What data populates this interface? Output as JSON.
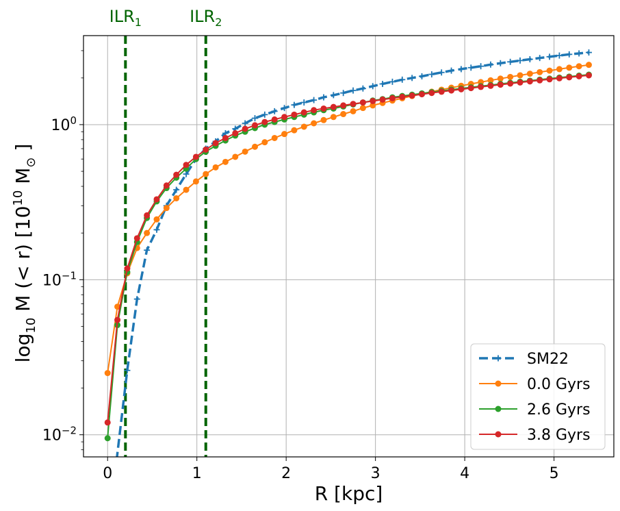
{
  "chart_data": {
    "type": "line",
    "title": "",
    "xlabel": "R [kpc]",
    "ylabel_prefix": "log",
    "ylabel_prefix_sub": "10",
    "ylabel_main": " M (< r) [10",
    "ylabel_exp": "10",
    "ylabel_unit": " M",
    "ylabel_unit_sub": "⊙",
    "ylabel_close": " ]",
    "yscale": "log",
    "xlim": [
      -0.27,
      5.67
    ],
    "ylim": [
      0.0072,
      3.75
    ],
    "x_ticks": [
      0,
      1,
      2,
      3,
      4,
      5
    ],
    "x_tick_labels": [
      "0",
      "1",
      "2",
      "3",
      "4",
      "5"
    ],
    "y_ticks": [
      0.01,
      0.1,
      1
    ],
    "y_tick_labels": [
      {
        "base": "10",
        "exp": "−2"
      },
      {
        "base": "10",
        "exp": "−1"
      },
      {
        "base": "10",
        "exp": "0"
      }
    ],
    "grid": true,
    "legend_position": "lower-right",
    "vlines": [
      {
        "x": 0.2,
        "label": "ILR",
        "sub": "1",
        "color": "#006400"
      },
      {
        "x": 1.1,
        "label": "ILR",
        "sub": "2",
        "color": "#006400"
      }
    ],
    "series": [
      {
        "name": "SM22",
        "color": "#1f77b4",
        "style": "dashed",
        "marker": "plus",
        "x": [
          0.1,
          0.22,
          0.33,
          0.44,
          0.55,
          0.66,
          0.77,
          0.88,
          0.99,
          1.1,
          1.21,
          1.32,
          1.43,
          1.54,
          1.65,
          1.76,
          1.87,
          1.98,
          2.09,
          2.2,
          2.31,
          2.42,
          2.53,
          2.64,
          2.75,
          2.86,
          2.97,
          3.08,
          3.19,
          3.3,
          3.41,
          3.52,
          3.63,
          3.74,
          3.85,
          3.96,
          4.07,
          4.18,
          4.29,
          4.4,
          4.51,
          4.62,
          4.73,
          4.84,
          4.95,
          5.06,
          5.17,
          5.28,
          5.39
        ],
        "values": [
          0.0068,
          0.026,
          0.075,
          0.155,
          0.21,
          0.3,
          0.38,
          0.48,
          0.6,
          0.7,
          0.78,
          0.88,
          0.94,
          1.02,
          1.1,
          1.16,
          1.22,
          1.28,
          1.34,
          1.39,
          1.44,
          1.5,
          1.55,
          1.6,
          1.66,
          1.71,
          1.77,
          1.83,
          1.89,
          1.95,
          2.0,
          2.05,
          2.11,
          2.17,
          2.23,
          2.28,
          2.33,
          2.38,
          2.44,
          2.49,
          2.54,
          2.59,
          2.64,
          2.69,
          2.74,
          2.79,
          2.84,
          2.88,
          2.92
        ]
      },
      {
        "name": "0.0 Gyrs",
        "color": "#ff7f0e",
        "style": "solid",
        "marker": "circle",
        "x": [
          0.0,
          0.11,
          0.22,
          0.33,
          0.44,
          0.55,
          0.66,
          0.77,
          0.88,
          0.99,
          1.1,
          1.21,
          1.32,
          1.43,
          1.54,
          1.65,
          1.76,
          1.87,
          1.98,
          2.09,
          2.2,
          2.31,
          2.42,
          2.53,
          2.64,
          2.75,
          2.86,
          2.97,
          3.08,
          3.19,
          3.3,
          3.41,
          3.52,
          3.63,
          3.74,
          3.85,
          3.96,
          4.07,
          4.18,
          4.29,
          4.4,
          4.51,
          4.62,
          4.73,
          4.84,
          4.95,
          5.06,
          5.17,
          5.28,
          5.39
        ],
        "values": [
          0.025,
          0.067,
          0.11,
          0.16,
          0.2,
          0.245,
          0.29,
          0.335,
          0.38,
          0.43,
          0.48,
          0.53,
          0.575,
          0.62,
          0.67,
          0.72,
          0.77,
          0.82,
          0.87,
          0.92,
          0.97,
          1.02,
          1.07,
          1.12,
          1.17,
          1.22,
          1.28,
          1.33,
          1.38,
          1.43,
          1.48,
          1.53,
          1.58,
          1.63,
          1.68,
          1.73,
          1.78,
          1.83,
          1.88,
          1.93,
          1.98,
          2.03,
          2.08,
          2.13,
          2.18,
          2.23,
          2.28,
          2.33,
          2.38,
          2.43
        ]
      },
      {
        "name": "2.6 Gyrs",
        "color": "#2ca02c",
        "style": "solid",
        "marker": "circle",
        "x": [
          0.0,
          0.11,
          0.22,
          0.33,
          0.44,
          0.55,
          0.66,
          0.77,
          0.88,
          0.99,
          1.1,
          1.21,
          1.32,
          1.43,
          1.54,
          1.65,
          1.76,
          1.87,
          1.98,
          2.09,
          2.2,
          2.31,
          2.42,
          2.53,
          2.64,
          2.75,
          2.86,
          2.97,
          3.08,
          3.19,
          3.3,
          3.41,
          3.52,
          3.63,
          3.74,
          3.85,
          3.96,
          4.07,
          4.18,
          4.29,
          4.4,
          4.51,
          4.62,
          4.73,
          4.84,
          4.95,
          5.06,
          5.17,
          5.28,
          5.39
        ],
        "values": [
          0.0095,
          0.051,
          0.112,
          0.175,
          0.25,
          0.32,
          0.39,
          0.455,
          0.52,
          0.6,
          0.67,
          0.73,
          0.79,
          0.85,
          0.9,
          0.95,
          1.0,
          1.04,
          1.08,
          1.12,
          1.16,
          1.2,
          1.24,
          1.27,
          1.31,
          1.35,
          1.39,
          1.43,
          1.46,
          1.5,
          1.53,
          1.56,
          1.59,
          1.62,
          1.65,
          1.68,
          1.71,
          1.74,
          1.77,
          1.8,
          1.83,
          1.86,
          1.89,
          1.92,
          1.95,
          1.98,
          2.01,
          2.04,
          2.07,
          2.1
        ]
      },
      {
        "name": "3.8 Gyrs",
        "color": "#d62728",
        "style": "solid",
        "marker": "circle",
        "x": [
          0.0,
          0.11,
          0.22,
          0.33,
          0.44,
          0.55,
          0.66,
          0.77,
          0.88,
          0.99,
          1.1,
          1.21,
          1.32,
          1.43,
          1.54,
          1.65,
          1.76,
          1.87,
          1.98,
          2.09,
          2.2,
          2.31,
          2.42,
          2.53,
          2.64,
          2.75,
          2.86,
          2.97,
          3.08,
          3.19,
          3.3,
          3.41,
          3.52,
          3.63,
          3.74,
          3.85,
          3.96,
          4.07,
          4.18,
          4.29,
          4.4,
          4.51,
          4.62,
          4.73,
          4.84,
          4.95,
          5.06,
          5.17,
          5.28,
          5.39
        ],
        "values": [
          0.012,
          0.055,
          0.118,
          0.185,
          0.26,
          0.33,
          0.405,
          0.475,
          0.55,
          0.62,
          0.69,
          0.76,
          0.82,
          0.88,
          0.94,
          0.99,
          1.04,
          1.08,
          1.12,
          1.16,
          1.2,
          1.24,
          1.27,
          1.3,
          1.33,
          1.36,
          1.39,
          1.42,
          1.45,
          1.48,
          1.51,
          1.54,
          1.57,
          1.6,
          1.63,
          1.66,
          1.69,
          1.72,
          1.75,
          1.78,
          1.81,
          1.84,
          1.87,
          1.9,
          1.93,
          1.96,
          1.99,
          2.02,
          2.05,
          2.08
        ]
      }
    ]
  }
}
